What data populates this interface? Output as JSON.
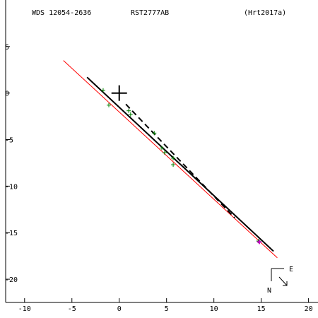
{
  "header": {
    "left": "WDS 12054-2636",
    "center": "RST2777AB",
    "right": "(Hrt2017a)"
  },
  "compass": {
    "east": "E",
    "north": "N"
  },
  "colors": {
    "axis": "#000000",
    "orbit": "#000000",
    "apsides": "#000000",
    "nodes": "#ff0000",
    "observations": "#008000",
    "latest": "#cc00cc"
  },
  "chart_data": {
    "type": "scatter",
    "title": "",
    "xlabel": "",
    "ylabel": "",
    "xlim": [
      -12,
      21
    ],
    "ylim": [
      -22.5,
      10
    ],
    "xticks": [
      -10,
      -5,
      0,
      5,
      10,
      15,
      20
    ],
    "yticks": [
      5,
      0,
      -5,
      -10,
      -15,
      -20
    ],
    "primary": {
      "x": 0,
      "y": 0
    },
    "orbit": [
      [
        -3.4,
        1.7
      ],
      [
        16.3,
        -17.0
      ]
    ],
    "apsides_line": [
      [
        0.7,
        -1.2
      ],
      [
        12.2,
        -13.4
      ]
    ],
    "line_of_nodes": [
      [
        -5.9,
        3.5
      ],
      [
        16.7,
        -17.7
      ]
    ],
    "observations": [
      [
        -1.7,
        0.3
      ],
      [
        -1.1,
        -1.3
      ],
      [
        1.0,
        -1.9
      ],
      [
        1.2,
        -2.3
      ],
      [
        3.7,
        -4.3
      ],
      [
        4.5,
        -5.9
      ],
      [
        4.8,
        -6.4
      ],
      [
        5.7,
        -7.0
      ],
      [
        5.7,
        -7.7
      ],
      [
        14.7,
        -15.9
      ]
    ],
    "latest": [
      14.8,
      -16.0
    ]
  }
}
